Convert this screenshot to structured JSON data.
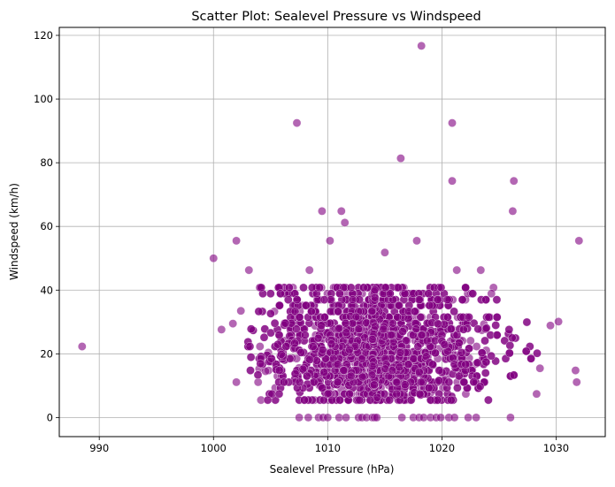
{
  "chart_data": {
    "type": "scatter",
    "title": "Scatter Plot: Sealevel Pressure vs Windspeed",
    "xlabel": "Sealevel Pressure (hPa)",
    "ylabel": "Windspeed (km/h)",
    "xlim": [
      986.5,
      1034.3
    ],
    "ylim": [
      -6,
      122.5
    ],
    "xticks": [
      990,
      1000,
      1010,
      1020,
      1030
    ],
    "yticks": [
      0,
      20,
      40,
      60,
      80,
      100,
      120
    ],
    "grid": true,
    "legend": "none",
    "point_color": "#800080",
    "point_opacity": 0.6,
    "outliers": [
      {
        "x": 988.5,
        "y": 22.3
      },
      {
        "x": 1000.0,
        "y": 50.0
      },
      {
        "x": 1000.7,
        "y": 27.6
      },
      {
        "x": 1001.7,
        "y": 29.5
      },
      {
        "x": 1002.0,
        "y": 55.5
      },
      {
        "x": 1002.0,
        "y": 11.1
      },
      {
        "x": 1002.4,
        "y": 33.5
      },
      {
        "x": 1007.3,
        "y": 92.5
      },
      {
        "x": 1009.5,
        "y": 64.8
      },
      {
        "x": 1011.2,
        "y": 64.8
      },
      {
        "x": 1011.5,
        "y": 61.2
      },
      {
        "x": 1016.4,
        "y": 81.4
      },
      {
        "x": 1018.2,
        "y": 116.7
      },
      {
        "x": 1020.9,
        "y": 92.5
      },
      {
        "x": 1020.9,
        "y": 74.3
      },
      {
        "x": 1026.3,
        "y": 74.3
      },
      {
        "x": 1026.2,
        "y": 64.8
      },
      {
        "x": 1032.0,
        "y": 55.5
      },
      {
        "x": 1031.7,
        "y": 14.8
      },
      {
        "x": 1031.8,
        "y": 11.1
      },
      {
        "x": 1030.2,
        "y": 30.1
      },
      {
        "x": 1029.5,
        "y": 28.9
      },
      {
        "x": 1017.8,
        "y": 55.5
      },
      {
        "x": 1021.3,
        "y": 46.3
      },
      {
        "x": 1023.4,
        "y": 46.3
      },
      {
        "x": 1015.0,
        "y": 51.8
      },
      {
        "x": 1010.2,
        "y": 55.5
      },
      {
        "x": 1008.4,
        "y": 46.3
      },
      {
        "x": 1003.1,
        "y": 46.3
      }
    ],
    "bulk_cloud": {
      "x_range": [
        1003,
        1030
      ],
      "x_center": 1014.5,
      "y_range": [
        5.5,
        48
      ],
      "y_center": 20,
      "zero_speed_x_range": [
        1007.5,
        1026
      ]
    }
  }
}
